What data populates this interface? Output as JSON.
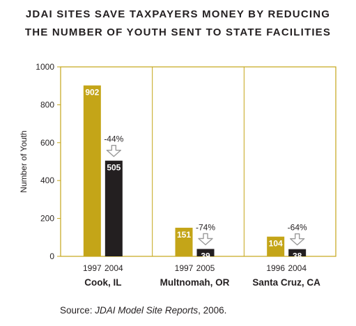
{
  "title_lines": [
    "JDAI SITES SAVE TAXPAYERS MONEY BY REDUCING",
    "THE NUMBER OF YOUTH SENT TO STATE FACILITIES"
  ],
  "source": {
    "prefix": "Source: ",
    "italic": "JDAI Model Site Reports",
    "suffix": ", 2006."
  },
  "colors": {
    "before": "#c4a518",
    "after": "#231f20",
    "frame": "#c4a518",
    "arrow": "#9a9a9a"
  },
  "chart_data": {
    "type": "bar",
    "title": "JDAI SITES SAVE TAXPAYERS MONEY BY REDUCING THE NUMBER OF YOUTH SENT TO STATE FACILITIES",
    "ylabel": "Number of Youth",
    "xlabel": "",
    "ylim": [
      0,
      1000
    ],
    "yticks": [
      "0",
      "200",
      "400",
      "600",
      "800",
      "1000"
    ],
    "grid": false,
    "groups": [
      {
        "name": "Cook, IL",
        "years": [
          "1997",
          "2004"
        ],
        "values": [
          902,
          505
        ],
        "change": "-44%"
      },
      {
        "name": "Multnomah, OR",
        "years": [
          "1997",
          "2005"
        ],
        "values": [
          151,
          39
        ],
        "change": "-74%"
      },
      {
        "name": "Santa Cruz, CA",
        "years": [
          "1996",
          "2004"
        ],
        "values": [
          104,
          38
        ],
        "change": "-64%"
      }
    ]
  }
}
